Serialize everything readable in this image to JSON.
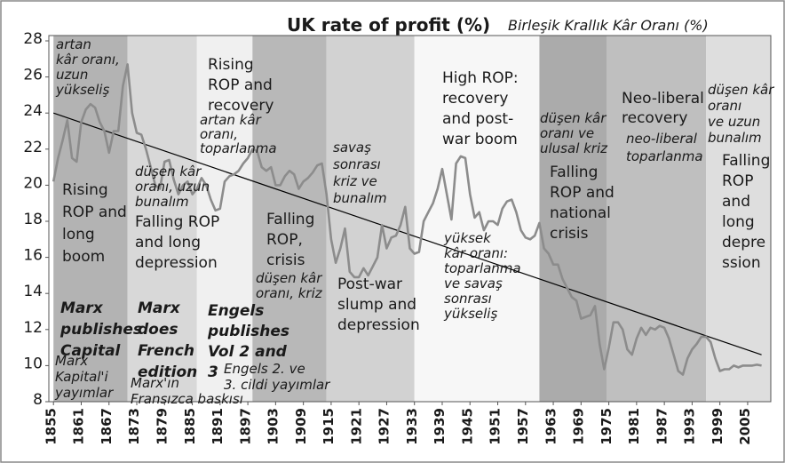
{
  "chart_data": {
    "type": "line",
    "title": "UK rate of profit (%)",
    "subtitle": "Birleşik Krallık Kâr Oranı (%)",
    "x": [
      1855,
      1856,
      1857,
      1858,
      1859,
      1860,
      1861,
      1862,
      1863,
      1864,
      1865,
      1866,
      1867,
      1868,
      1869,
      1870,
      1871,
      1872,
      1873,
      1874,
      1875,
      1876,
      1877,
      1878,
      1879,
      1880,
      1881,
      1882,
      1883,
      1884,
      1885,
      1886,
      1887,
      1888,
      1889,
      1890,
      1891,
      1892,
      1893,
      1894,
      1895,
      1896,
      1897,
      1898,
      1899,
      1900,
      1901,
      1902,
      1903,
      1904,
      1905,
      1906,
      1907,
      1908,
      1909,
      1910,
      1911,
      1912,
      1913,
      1914,
      1915,
      1916,
      1917,
      1918,
      1919,
      1920,
      1921,
      1922,
      1923,
      1924,
      1925,
      1926,
      1927,
      1928,
      1929,
      1930,
      1931,
      1932,
      1933,
      1934,
      1935,
      1936,
      1937,
      1938,
      1939,
      1940,
      1941,
      1942,
      1943,
      1944,
      1945,
      1946,
      1947,
      1948,
      1949,
      1950,
      1951,
      1952,
      1953,
      1954,
      1955,
      1956,
      1957,
      1958,
      1959,
      1960,
      1961,
      1962,
      1963,
      1964,
      1965,
      1966,
      1967,
      1968,
      1969,
      1970,
      1971,
      1972,
      1973,
      1974,
      1975,
      1976,
      1977,
      1978,
      1979,
      1980,
      1981,
      1982,
      1983,
      1984,
      1985,
      1986,
      1987,
      1988,
      1989,
      1990,
      1991,
      1992,
      1993,
      1994,
      1995,
      1996,
      1997,
      1998,
      1999,
      2000,
      2001,
      2002,
      2003,
      2004,
      2005,
      2006,
      2007,
      2008
    ],
    "values": [
      20.2,
      21.5,
      22.5,
      23.6,
      21.5,
      21.3,
      23.5,
      24.2,
      24.5,
      24.3,
      23.5,
      23,
      21.8,
      23,
      23,
      25.5,
      26.7,
      24,
      22.9,
      22.8,
      22,
      21,
      20,
      19.8,
      21.3,
      21.4,
      20.3,
      19.5,
      20,
      20.2,
      19.5,
      19.8,
      20.4,
      20,
      19.2,
      18.6,
      18.7,
      20.2,
      20.5,
      20.6,
      20.8,
      21.2,
      21.5,
      22,
      21.9,
      21,
      20.8,
      21,
      20,
      20,
      20.5,
      20.8,
      20.6,
      19.8,
      20.2,
      20.4,
      20.7,
      21.1,
      21.2,
      19.5,
      17,
      15.7,
      16.5,
      17.6,
      15.2,
      14.9,
      14.9,
      15.4,
      15,
      15.5,
      16,
      17.8,
      16.5,
      17.1,
      17.2,
      17.8,
      18.8,
      16.5,
      16.2,
      16.3,
      18,
      18.5,
      19,
      19.8,
      20.9,
      19.5,
      18.1,
      21.2,
      21.6,
      21.5,
      19.5,
      18.2,
      18.5,
      17.5,
      18,
      18,
      17.8,
      18.7,
      19.1,
      19.2,
      18.5,
      17.5,
      17.1,
      17,
      17.2,
      17.9,
      16.5,
      16.2,
      15.6,
      15.6,
      14.8,
      14.3,
      13.8,
      13.6,
      12.6,
      12.7,
      12.8,
      13.3,
      11.2,
      9.8,
      11,
      12.4,
      12.4,
      12,
      10.9,
      10.6,
      11.5,
      12.1,
      11.7,
      12.1,
      12,
      12.2,
      12.1,
      11.5,
      10.6,
      9.7,
      9.5,
      10.4,
      10.9,
      11.2,
      11.6,
      11.6,
      11.3,
      10.4,
      9.7,
      9.8,
      9.8,
      10,
      9.9,
      10,
      10,
      10,
      10.05,
      10
    ],
    "color": "#8c8c8c",
    "trend": {
      "x": [
        1855,
        2008
      ],
      "values": [
        24,
        10.6
      ],
      "color": "#000000"
    },
    "bands": [
      {
        "start": 1855,
        "end": 1871,
        "color": "#b3b3b3"
      },
      {
        "start": 1871,
        "end": 1886,
        "color": "#d8d8d8"
      },
      {
        "start": 1886,
        "end": 1898,
        "color": "#f0f0f0"
      },
      {
        "start": 1898,
        "end": 1914,
        "color": "#b8b8b8"
      },
      {
        "start": 1914,
        "end": 1933,
        "color": "#d2d2d2"
      },
      {
        "start": 1933,
        "end": 1960,
        "color": "#f7f7f7"
      },
      {
        "start": 1960,
        "end": 1974.5,
        "color": "#ababab"
      },
      {
        "start": 1974.5,
        "end": 1996,
        "color": "#bfbfbf"
      },
      {
        "start": 1996,
        "end": 2010,
        "color": "#dedede"
      }
    ],
    "xlim": [
      1854,
      2010
    ],
    "xticks": [
      1855,
      1861,
      1867,
      1873,
      1879,
      1885,
      1891,
      1897,
      1903,
      1909,
      1915,
      1921,
      1927,
      1933,
      1939,
      1945,
      1951,
      1957,
      1963,
      1969,
      1975,
      1981,
      1987,
      1993,
      1999,
      2005
    ],
    "ylim": [
      8,
      28
    ],
    "yticks": [
      8,
      10,
      12,
      14,
      16,
      18,
      20,
      22,
      24,
      26,
      28
    ],
    "grid": false,
    "annotations": [
      [
        "artan",
        "kâr oranı,",
        "uzun",
        "yükseliş"
      ],
      [
        "Rising",
        "ROP and",
        "long",
        "boom"
      ],
      [
        "Marx",
        "publishes",
        "Capital"
      ],
      [
        "Marx",
        "Kapital'i",
        "yayımlar"
      ],
      [
        "Marx",
        "does",
        "French",
        "edition"
      ],
      [
        "Marx'ın",
        "Fransızca baskısı"
      ],
      [
        "düşen kâr",
        "oranı, uzun",
        "bunalım"
      ],
      [
        "Falling ROP",
        "and long",
        "depression"
      ],
      [
        "Rising",
        "ROP and",
        "recovery"
      ],
      [
        "artan kâr",
        "oranı,",
        "toparlanma"
      ],
      [
        "Engels",
        "publishes",
        "Vol 2 and",
        "3"
      ],
      [
        "Engels 2. ve",
        "3. cildi yayımlar"
      ],
      [
        "Falling",
        "ROP,",
        "crisis"
      ],
      [
        "düşen kâr",
        "oranı, kriz"
      ],
      [
        "savaş",
        "sonrası",
        "kriz ve",
        "bunalım"
      ],
      [
        "Post-war",
        "slump and",
        "depression"
      ],
      [
        "High ROP:",
        "recovery",
        "and post-",
        "war boom"
      ],
      [
        "yüksek",
        "kâr oranı:",
        "toparlanma",
        "ve savaş",
        "sonrası",
        "yükseliş"
      ],
      [
        "düşen kâr",
        "oranı ve",
        "ulusal kriz"
      ],
      [
        "Falling",
        "ROP and",
        "national",
        "crisis"
      ],
      [
        "Neo-liberal",
        "recovery"
      ],
      [
        "neo-liberal",
        "toparlanma"
      ],
      [
        "düşen kâr",
        "oranı",
        "ve uzun",
        "bunalım"
      ],
      [
        "Falling",
        "ROP",
        "and",
        "long",
        "depre",
        "ssion"
      ]
    ]
  }
}
